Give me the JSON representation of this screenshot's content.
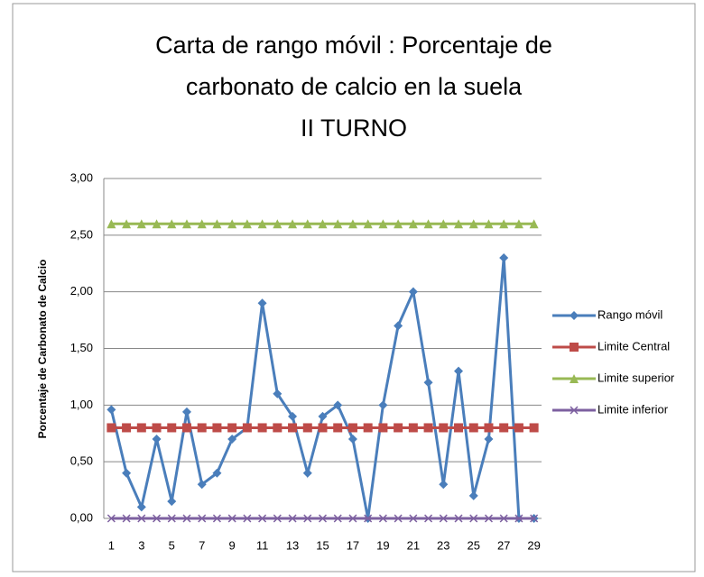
{
  "chart_data": {
    "type": "line",
    "title": [
      "Carta de rango móvil : Porcentaje de",
      "carbonato de calcio  en la  suela",
      "II TURNO"
    ],
    "y_label": "Porcentaje de Carbonato de Calcio",
    "categories": [
      1,
      null,
      3,
      null,
      5,
      null,
      7,
      null,
      9,
      null,
      11,
      null,
      13,
      null,
      15,
      null,
      17,
      null,
      19,
      null,
      21,
      null,
      23,
      null,
      25,
      null,
      27,
      null,
      29
    ],
    "series": [
      {
        "name": "Rango móvil",
        "color": "#4a7ebb",
        "marker": "diamond",
        "values": [
          0.96,
          0.4,
          0.1,
          0.7,
          0.15,
          0.94,
          0.3,
          0.4,
          0.7,
          0.8,
          1.9,
          1.1,
          0.9,
          0.4,
          0.9,
          1.0,
          0.7,
          0.0,
          1.0,
          1.7,
          2.0,
          1.2,
          0.3,
          1.3,
          0.2,
          0.7,
          2.3,
          0.0,
          0.0
        ]
      },
      {
        "name": "Limite Central",
        "color": "#be4b48",
        "marker": "square",
        "values": [
          0.8,
          0.8,
          0.8,
          0.8,
          0.8,
          0.8,
          0.8,
          0.8,
          0.8,
          0.8,
          0.8,
          0.8,
          0.8,
          0.8,
          0.8,
          0.8,
          0.8,
          0.8,
          0.8,
          0.8,
          0.8,
          0.8,
          0.8,
          0.8,
          0.8,
          0.8,
          0.8,
          0.8,
          0.8
        ]
      },
      {
        "name": "Limite superior",
        "color": "#98b954",
        "marker": "triangle",
        "values": [
          2.6,
          2.6,
          2.6,
          2.6,
          2.6,
          2.6,
          2.6,
          2.6,
          2.6,
          2.6,
          2.6,
          2.6,
          2.6,
          2.6,
          2.6,
          2.6,
          2.6,
          2.6,
          2.6,
          2.6,
          2.6,
          2.6,
          2.6,
          2.6,
          2.6,
          2.6,
          2.6,
          2.6,
          2.6
        ]
      },
      {
        "name": "Limite inferior",
        "color": "#7d60a0",
        "marker": "x",
        "values": [
          0,
          0,
          0,
          0,
          0,
          0,
          0,
          0,
          0,
          0,
          0,
          0,
          0,
          0,
          0,
          0,
          0,
          0,
          0,
          0,
          0,
          0,
          0,
          0,
          0,
          0,
          0,
          0,
          0
        ]
      }
    ],
    "ylim": [
      0,
      3
    ],
    "yticks": [
      {
        "value": 0,
        "label": "0,00"
      },
      {
        "value": 0.5,
        "label": "0,50"
      },
      {
        "value": 1,
        "label": "1,00"
      },
      {
        "value": 1.5,
        "label": "1,50"
      },
      {
        "value": 2,
        "label": "2,00"
      },
      {
        "value": 2.5,
        "label": "2,50"
      },
      {
        "value": 3,
        "label": "3,00"
      }
    ],
    "grid": true,
    "legend": "right"
  }
}
